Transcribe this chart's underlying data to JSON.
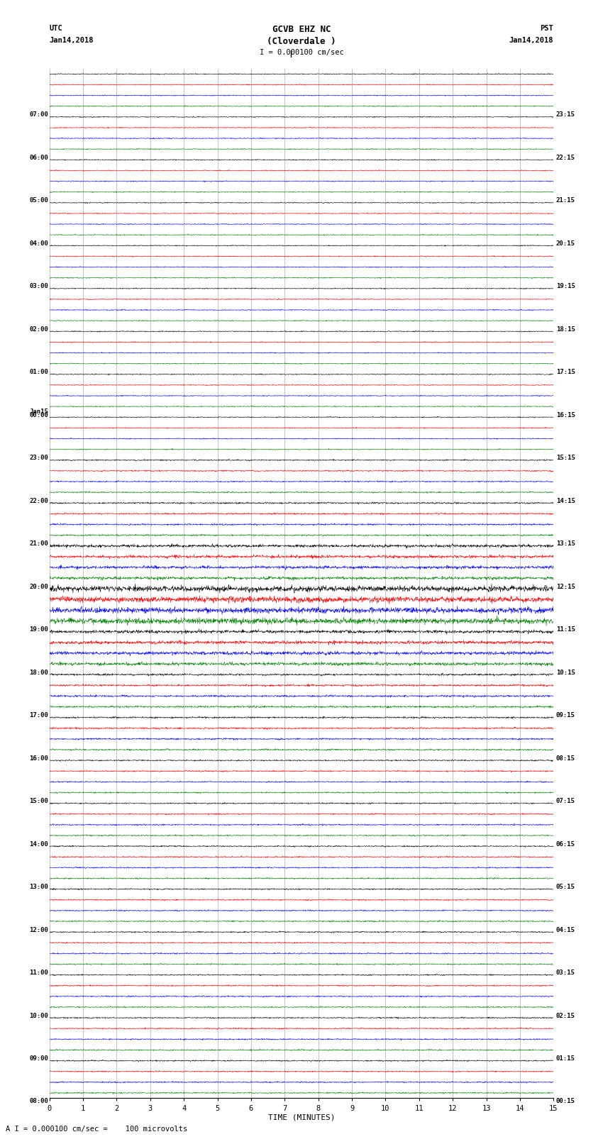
{
  "title_line1": "GCVB EHZ NC",
  "title_line2": "(Cloverdale )",
  "title_line3": "I = 0.000100 cm/sec",
  "left_header_line1": "UTC",
  "left_header_line2": "Jan14,2018",
  "right_header_line1": "PST",
  "right_header_line2": "Jan14,2018",
  "xlabel": "TIME (MINUTES)",
  "footer": "A I = 0.000100 cm/sec =    100 microvolts",
  "utc_hours": [
    "08:00",
    "09:00",
    "10:00",
    "11:00",
    "12:00",
    "13:00",
    "14:00",
    "15:00",
    "16:00",
    "17:00",
    "18:00",
    "19:00",
    "20:00",
    "21:00",
    "22:00",
    "23:00",
    "00:00",
    "01:00",
    "02:00",
    "03:00",
    "04:00",
    "05:00",
    "06:00",
    "07:00"
  ],
  "pst_hours": [
    "00:15",
    "01:15",
    "02:15",
    "03:15",
    "04:15",
    "05:15",
    "06:15",
    "07:15",
    "08:15",
    "09:15",
    "10:15",
    "11:15",
    "12:15",
    "13:15",
    "14:15",
    "15:15",
    "16:15",
    "17:15",
    "18:15",
    "19:15",
    "20:15",
    "21:15",
    "22:15",
    "23:15"
  ],
  "trace_colors": [
    "black",
    "red",
    "blue",
    "green"
  ],
  "n_hours": 24,
  "traces_per_hour": 4,
  "xmin": 0,
  "xmax": 15,
  "xticks": [
    0,
    1,
    2,
    3,
    4,
    5,
    6,
    7,
    8,
    9,
    10,
    11,
    12,
    13,
    14,
    15
  ],
  "bg_color": "white",
  "grid_color": "#888888",
  "noise_by_hour": [
    0.06,
    0.06,
    0.06,
    0.06,
    0.06,
    0.06,
    0.06,
    0.06,
    0.06,
    0.08,
    0.1,
    0.18,
    0.35,
    0.2,
    0.12,
    0.1,
    0.08,
    0.08,
    0.08,
    0.08,
    0.08,
    0.08,
    0.08,
    0.08
  ]
}
